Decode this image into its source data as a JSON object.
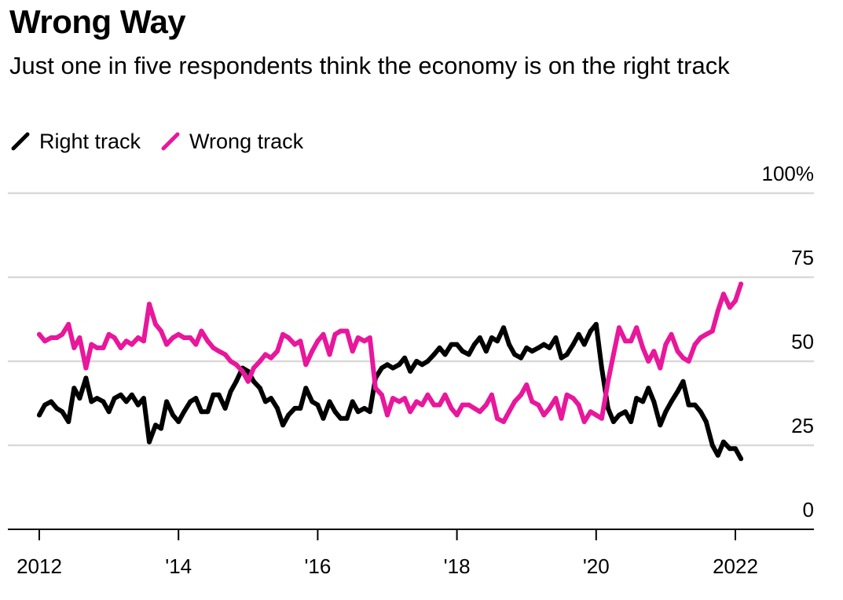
{
  "title": "Wrong Way",
  "subtitle": "Just one in five respondents think the economy is on the right track",
  "legend": {
    "right": {
      "label": "Right track",
      "color": "#000000"
    },
    "wrong": {
      "label": "Wrong track",
      "color": "#e8179b"
    }
  },
  "chart_data": {
    "type": "line",
    "title": "Wrong Way",
    "subtitle": "Just one in five respondents think the economy is on the right track",
    "xlabel": "",
    "ylabel": "",
    "xlim": [
      2012,
      2023.1
    ],
    "ylim": [
      0,
      100
    ],
    "grid": true,
    "legend_position": "top-left",
    "x_ticks": [
      {
        "value": 2012,
        "label": "2012"
      },
      {
        "value": 2014,
        "label": "'14"
      },
      {
        "value": 2016,
        "label": "'16"
      },
      {
        "value": 2018,
        "label": "'18"
      },
      {
        "value": 2020,
        "label": "'20"
      },
      {
        "value": 2022,
        "label": "2022"
      }
    ],
    "y_ticks": [
      {
        "value": 0,
        "label": "0"
      },
      {
        "value": 25,
        "label": "25"
      },
      {
        "value": 50,
        "label": "50"
      },
      {
        "value": 75,
        "label": "75"
      },
      {
        "value": 100,
        "label": "100%"
      }
    ],
    "series": [
      {
        "name": "Right track",
        "color": "#000000",
        "points": [
          [
            2012.0,
            34
          ],
          [
            2012.08,
            37
          ],
          [
            2012.17,
            38
          ],
          [
            2012.25,
            36
          ],
          [
            2012.33,
            35
          ],
          [
            2012.42,
            32
          ],
          [
            2012.5,
            42
          ],
          [
            2012.58,
            39
          ],
          [
            2012.67,
            45
          ],
          [
            2012.75,
            38
          ],
          [
            2012.83,
            39
          ],
          [
            2012.92,
            38
          ],
          [
            2013.0,
            35
          ],
          [
            2013.08,
            39
          ],
          [
            2013.17,
            40
          ],
          [
            2013.25,
            38
          ],
          [
            2013.33,
            40
          ],
          [
            2013.42,
            37
          ],
          [
            2013.5,
            39
          ],
          [
            2013.58,
            26
          ],
          [
            2013.67,
            31
          ],
          [
            2013.75,
            30
          ],
          [
            2013.83,
            38
          ],
          [
            2013.92,
            34
          ],
          [
            2014.0,
            32
          ],
          [
            2014.08,
            35
          ],
          [
            2014.17,
            38
          ],
          [
            2014.25,
            39
          ],
          [
            2014.33,
            35
          ],
          [
            2014.42,
            35
          ],
          [
            2014.5,
            40
          ],
          [
            2014.58,
            40
          ],
          [
            2014.67,
            36
          ],
          [
            2014.75,
            41
          ],
          [
            2014.83,
            44
          ],
          [
            2014.92,
            48
          ],
          [
            2015.0,
            47
          ],
          [
            2015.08,
            44
          ],
          [
            2015.17,
            42
          ],
          [
            2015.25,
            38
          ],
          [
            2015.33,
            39
          ],
          [
            2015.42,
            36
          ],
          [
            2015.5,
            31
          ],
          [
            2015.58,
            34
          ],
          [
            2015.67,
            36
          ],
          [
            2015.75,
            36
          ],
          [
            2015.83,
            42
          ],
          [
            2015.92,
            38
          ],
          [
            2016.0,
            37
          ],
          [
            2016.08,
            33
          ],
          [
            2016.17,
            38
          ],
          [
            2016.25,
            35
          ],
          [
            2016.33,
            33
          ],
          [
            2016.42,
            33
          ],
          [
            2016.5,
            38
          ],
          [
            2016.58,
            35
          ],
          [
            2016.67,
            36
          ],
          [
            2016.75,
            35
          ],
          [
            2016.83,
            45
          ],
          [
            2016.92,
            48
          ],
          [
            2017.0,
            49
          ],
          [
            2017.08,
            48
          ],
          [
            2017.17,
            49
          ],
          [
            2017.25,
            51
          ],
          [
            2017.33,
            47
          ],
          [
            2017.42,
            50
          ],
          [
            2017.5,
            49
          ],
          [
            2017.58,
            50
          ],
          [
            2017.67,
            52
          ],
          [
            2017.75,
            54
          ],
          [
            2017.83,
            52
          ],
          [
            2017.92,
            55
          ],
          [
            2018.0,
            55
          ],
          [
            2018.08,
            53
          ],
          [
            2018.17,
            52
          ],
          [
            2018.25,
            55
          ],
          [
            2018.33,
            57
          ],
          [
            2018.42,
            53
          ],
          [
            2018.5,
            57
          ],
          [
            2018.58,
            56
          ],
          [
            2018.67,
            60
          ],
          [
            2018.75,
            55
          ],
          [
            2018.83,
            52
          ],
          [
            2018.92,
            51
          ],
          [
            2019.0,
            54
          ],
          [
            2019.08,
            53
          ],
          [
            2019.17,
            54
          ],
          [
            2019.25,
            55
          ],
          [
            2019.33,
            54
          ],
          [
            2019.42,
            57
          ],
          [
            2019.5,
            51
          ],
          [
            2019.58,
            52
          ],
          [
            2019.67,
            55
          ],
          [
            2019.75,
            58
          ],
          [
            2019.83,
            55
          ],
          [
            2019.92,
            59
          ],
          [
            2020.0,
            61
          ],
          [
            2020.08,
            48
          ],
          [
            2020.17,
            36
          ],
          [
            2020.25,
            32
          ],
          [
            2020.33,
            34
          ],
          [
            2020.42,
            35
          ],
          [
            2020.5,
            32
          ],
          [
            2020.58,
            39
          ],
          [
            2020.67,
            38
          ],
          [
            2020.75,
            42
          ],
          [
            2020.83,
            38
          ],
          [
            2020.92,
            31
          ],
          [
            2021.0,
            35
          ],
          [
            2021.08,
            38
          ],
          [
            2021.17,
            41
          ],
          [
            2021.25,
            44
          ],
          [
            2021.33,
            37
          ],
          [
            2021.42,
            37
          ],
          [
            2021.5,
            35
          ],
          [
            2021.58,
            32
          ],
          [
            2021.67,
            25
          ],
          [
            2021.75,
            22
          ],
          [
            2021.83,
            26
          ],
          [
            2021.92,
            24
          ],
          [
            2022.0,
            24
          ],
          [
            2022.08,
            21
          ]
        ]
      },
      {
        "name": "Wrong track",
        "color": "#e8179b",
        "points": [
          [
            2012.0,
            58
          ],
          [
            2012.08,
            56
          ],
          [
            2012.17,
            57
          ],
          [
            2012.25,
            57
          ],
          [
            2012.33,
            58
          ],
          [
            2012.42,
            61
          ],
          [
            2012.5,
            54
          ],
          [
            2012.58,
            57
          ],
          [
            2012.67,
            48
          ],
          [
            2012.75,
            55
          ],
          [
            2012.83,
            54
          ],
          [
            2012.92,
            54
          ],
          [
            2013.0,
            58
          ],
          [
            2013.08,
            57
          ],
          [
            2013.17,
            54
          ],
          [
            2013.25,
            56
          ],
          [
            2013.33,
            55
          ],
          [
            2013.42,
            57
          ],
          [
            2013.5,
            56
          ],
          [
            2013.58,
            67
          ],
          [
            2013.67,
            61
          ],
          [
            2013.75,
            59
          ],
          [
            2013.83,
            55
          ],
          [
            2013.92,
            57
          ],
          [
            2014.0,
            58
          ],
          [
            2014.08,
            57
          ],
          [
            2014.17,
            57
          ],
          [
            2014.25,
            55
          ],
          [
            2014.33,
            59
          ],
          [
            2014.42,
            56
          ],
          [
            2014.5,
            54
          ],
          [
            2014.58,
            53
          ],
          [
            2014.67,
            52
          ],
          [
            2014.75,
            50
          ],
          [
            2014.83,
            49
          ],
          [
            2014.92,
            47
          ],
          [
            2015.0,
            44
          ],
          [
            2015.08,
            48
          ],
          [
            2015.17,
            50
          ],
          [
            2015.25,
            52
          ],
          [
            2015.33,
            51
          ],
          [
            2015.42,
            53
          ],
          [
            2015.5,
            58
          ],
          [
            2015.58,
            57
          ],
          [
            2015.67,
            55
          ],
          [
            2015.75,
            56
          ],
          [
            2015.83,
            49
          ],
          [
            2015.92,
            53
          ],
          [
            2016.0,
            56
          ],
          [
            2016.08,
            58
          ],
          [
            2016.17,
            52
          ],
          [
            2016.25,
            58
          ],
          [
            2016.33,
            59
          ],
          [
            2016.42,
            59
          ],
          [
            2016.5,
            53
          ],
          [
            2016.58,
            57
          ],
          [
            2016.67,
            56
          ],
          [
            2016.75,
            57
          ],
          [
            2016.83,
            42
          ],
          [
            2016.92,
            40
          ],
          [
            2017.0,
            34
          ],
          [
            2017.08,
            39
          ],
          [
            2017.17,
            38
          ],
          [
            2017.25,
            39
          ],
          [
            2017.33,
            35
          ],
          [
            2017.42,
            38
          ],
          [
            2017.5,
            37
          ],
          [
            2017.58,
            40
          ],
          [
            2017.67,
            37
          ],
          [
            2017.75,
            37
          ],
          [
            2017.83,
            40
          ],
          [
            2017.92,
            36
          ],
          [
            2018.0,
            34
          ],
          [
            2018.08,
            37
          ],
          [
            2018.17,
            37
          ],
          [
            2018.25,
            36
          ],
          [
            2018.33,
            35
          ],
          [
            2018.42,
            37
          ],
          [
            2018.5,
            40
          ],
          [
            2018.58,
            33
          ],
          [
            2018.67,
            32
          ],
          [
            2018.75,
            35
          ],
          [
            2018.83,
            38
          ],
          [
            2018.92,
            40
          ],
          [
            2019.0,
            43
          ],
          [
            2019.08,
            38
          ],
          [
            2019.17,
            37
          ],
          [
            2019.25,
            34
          ],
          [
            2019.33,
            36
          ],
          [
            2019.42,
            39
          ],
          [
            2019.5,
            33
          ],
          [
            2019.58,
            40
          ],
          [
            2019.67,
            39
          ],
          [
            2019.75,
            37
          ],
          [
            2019.83,
            32
          ],
          [
            2019.92,
            35
          ],
          [
            2020.0,
            34
          ],
          [
            2020.08,
            33
          ],
          [
            2020.17,
            44
          ],
          [
            2020.25,
            52
          ],
          [
            2020.33,
            60
          ],
          [
            2020.42,
            56
          ],
          [
            2020.5,
            56
          ],
          [
            2020.58,
            60
          ],
          [
            2020.67,
            54
          ],
          [
            2020.75,
            50
          ],
          [
            2020.83,
            53
          ],
          [
            2020.92,
            48
          ],
          [
            2021.0,
            55
          ],
          [
            2021.08,
            58
          ],
          [
            2021.17,
            53
          ],
          [
            2021.25,
            51
          ],
          [
            2021.33,
            50
          ],
          [
            2021.42,
            55
          ],
          [
            2021.5,
            57
          ],
          [
            2021.58,
            58
          ],
          [
            2021.67,
            59
          ],
          [
            2021.75,
            65
          ],
          [
            2021.83,
            70
          ],
          [
            2021.92,
            66
          ],
          [
            2022.0,
            68
          ],
          [
            2022.08,
            73
          ]
        ]
      }
    ]
  }
}
